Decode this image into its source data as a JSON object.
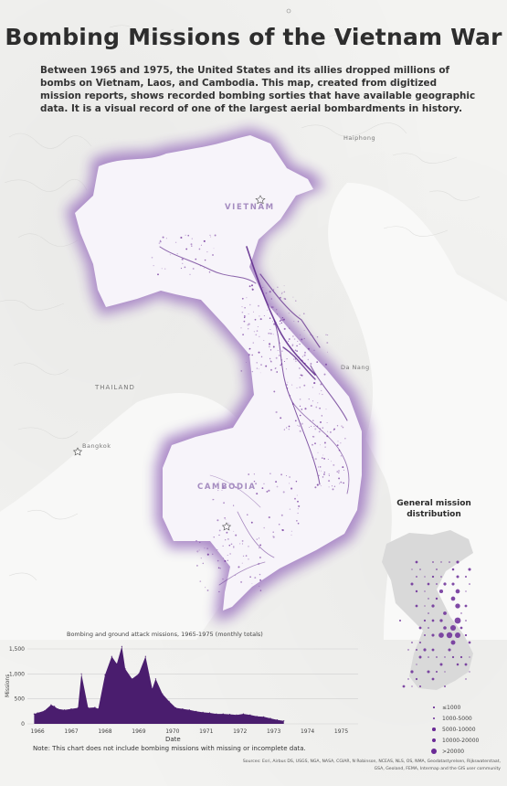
{
  "title": "Bombing Missions of the Vietnam War",
  "intro": "Between 1965 and 1975, the United States and its allies dropped millions of bombs on Vietnam, Laos, and Cambodia. This map, created from digitized mission reports, shows recorded bombing sorties that have available geographic data. It is a visual record of one of the largest aerial bombardments in history.",
  "map": {
    "highlight_color": "#6a2a96",
    "labels": {
      "vietnam": "VIETNAM",
      "thailand": "THAILAND",
      "cambodia": "CAMBODIA",
      "bangkok": "Bangkok",
      "da_nang": "Da Nang",
      "haiphong": "Haiphong"
    }
  },
  "inset": {
    "title": "General mission distribution",
    "legend": [
      {
        "label": "≤1000",
        "size": 1.5
      },
      {
        "label": "1000-5000",
        "size": 2.5
      },
      {
        "label": "5000-10000",
        "size": 3.5
      },
      {
        "label": "10000-20000",
        "size": 4.5
      },
      {
        "label": ">20000",
        "size": 6
      }
    ]
  },
  "chart_title": "Bombing and ground attack missions, 1965-1975 (monthly totals)",
  "chart_data": {
    "type": "area",
    "xlabel": "Date",
    "ylabel": "Missions",
    "x_ticks": [
      "1966",
      "1967",
      "1968",
      "1969",
      "1970",
      "1971",
      "1972",
      "1973",
      "1974",
      "1975"
    ],
    "y_ticks": [
      "0",
      "500",
      "1,000",
      "1,500"
    ],
    "ylim": [
      0,
      1500
    ],
    "xlim": [
      1965.7,
      1975.5
    ],
    "grid": true,
    "series": [
      {
        "x": [
          1965.9,
          1966.0,
          1966.2,
          1966.4,
          1966.5,
          1966.6,
          1966.8,
          1967.0,
          1967.2,
          1967.3,
          1967.5,
          1967.7,
          1967.8,
          1968.0,
          1968.2,
          1968.35,
          1968.5,
          1968.6,
          1968.8,
          1969.0,
          1969.2,
          1969.4,
          1969.5,
          1969.7,
          1969.9,
          1970.1,
          1970.3,
          1970.5,
          1970.7,
          1970.9,
          1971.1,
          1971.3,
          1971.5,
          1971.7,
          1971.9,
          1972.1,
          1972.3,
          1972.5,
          1972.7,
          1972.9,
          1973.1,
          1973.3
        ],
        "values": [
          200,
          220,
          260,
          380,
          350,
          300,
          280,
          300,
          320,
          1000,
          320,
          330,
          300,
          980,
          1350,
          1200,
          1550,
          1100,
          900,
          1000,
          1350,
          700,
          900,
          600,
          450,
          320,
          300,
          280,
          250,
          230,
          220,
          200,
          200,
          190,
          180,
          200,
          180,
          150,
          140,
          110,
          80,
          60
        ]
      }
    ],
    "note": "Note: This chart does not include bombing missions with missing or incomplete data."
  },
  "sources": "Sources: Esri, Airbus DS, USGS, NGA, NASA, CGIAR, N Robinson, NCEAS, NLS, OS, NMA, Geodatastyrelsen, Rijkswaterstaat, GSA, Geoland, FEMA, Intermap and the GIS user community"
}
